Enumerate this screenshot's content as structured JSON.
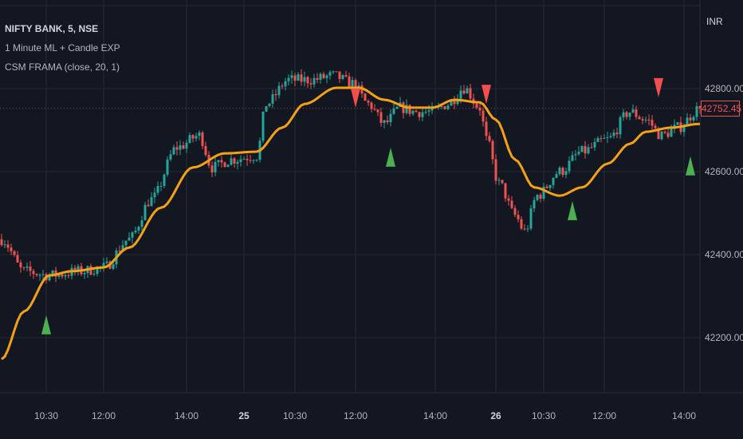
{
  "legend": {
    "symbol": "NIFTY BANK, 5, NSE",
    "indicator1": "1 Minute ML + Candle EXP",
    "indicator2": "CSM FRAMA (close, 20, 1)"
  },
  "currency": "INR",
  "last_price": "42752.45",
  "colors": {
    "background": "#131722",
    "grid": "#242833",
    "up": "#26a69a",
    "down": "#ef5350",
    "frama": "#f5a116",
    "buy": "#4caf50",
    "sell": "#f44f4f"
  },
  "chart_data": {
    "type": "candlestick",
    "title": "NIFTY BANK, 5, NSE",
    "ylim": [
      42080,
      42980
    ],
    "y_ticks": [
      "42800.00",
      "42600.00",
      "42400.00",
      "42200.00"
    ],
    "y_tick_values": [
      42800,
      42600,
      42400,
      42200
    ],
    "bar_count": 220,
    "x_ticks": [
      {
        "label": "10:30",
        "bar": 14,
        "day": false
      },
      {
        "label": "12:00",
        "bar": 32,
        "day": false
      },
      {
        "label": "14:00",
        "bar": 58,
        "day": false
      },
      {
        "label": "25",
        "bar": 76,
        "day": true
      },
      {
        "label": "10:30",
        "bar": 92,
        "day": false
      },
      {
        "label": "12:00",
        "bar": 111,
        "day": false
      },
      {
        "label": "14:00",
        "bar": 136,
        "day": false
      },
      {
        "label": "26",
        "bar": 155,
        "day": true
      },
      {
        "label": "10:30",
        "bar": 170,
        "day": false
      },
      {
        "label": "12:00",
        "bar": 189,
        "day": false
      },
      {
        "label": "14:00",
        "bar": 214,
        "day": false
      }
    ],
    "price_path": [
      [
        0,
        42437
      ],
      [
        7,
        42360
      ],
      [
        15,
        42350
      ],
      [
        25,
        42360
      ],
      [
        32,
        42369
      ],
      [
        40,
        42437
      ],
      [
        47,
        42533
      ],
      [
        55,
        42658
      ],
      [
        62,
        42687
      ],
      [
        66,
        42610
      ],
      [
        72,
        42629
      ],
      [
        80,
        42638
      ],
      [
        83,
        42763
      ],
      [
        90,
        42821
      ],
      [
        97,
        42821
      ],
      [
        104,
        42831
      ],
      [
        110,
        42812
      ],
      [
        115,
        42763
      ],
      [
        120,
        42715
      ],
      [
        125,
        42754
      ],
      [
        130,
        42744
      ],
      [
        135,
        42744
      ],
      [
        140,
        42763
      ],
      [
        145,
        42802
      ],
      [
        150,
        42754
      ],
      [
        152,
        42677
      ],
      [
        156,
        42571
      ],
      [
        161,
        42494
      ],
      [
        164,
        42456
      ],
      [
        168,
        42542
      ],
      [
        175,
        42600
      ],
      [
        182,
        42648
      ],
      [
        190,
        42677
      ],
      [
        197,
        42744
      ],
      [
        202,
        42725
      ],
      [
        207,
        42687
      ],
      [
        212,
        42706
      ],
      [
        219,
        42752.45
      ]
    ],
    "frama_path": [
      [
        0,
        42148
      ],
      [
        7,
        42263
      ],
      [
        15,
        42350
      ],
      [
        22,
        42360
      ],
      [
        32,
        42369
      ],
      [
        40,
        42417
      ],
      [
        50,
        42513
      ],
      [
        60,
        42610
      ],
      [
        70,
        42644
      ],
      [
        80,
        42648
      ],
      [
        88,
        42706
      ],
      [
        95,
        42763
      ],
      [
        105,
        42802
      ],
      [
        112,
        42802
      ],
      [
        120,
        42773
      ],
      [
        128,
        42754
      ],
      [
        135,
        42754
      ],
      [
        142,
        42773
      ],
      [
        150,
        42767
      ],
      [
        155,
        42725
      ],
      [
        161,
        42629
      ],
      [
        167,
        42562
      ],
      [
        175,
        42542
      ],
      [
        182,
        42562
      ],
      [
        190,
        42619
      ],
      [
        197,
        42667
      ],
      [
        202,
        42696
      ],
      [
        210,
        42706
      ],
      [
        219,
        42715
      ]
    ],
    "signals": [
      {
        "type": "sell",
        "bar": 111,
        "price": 42754
      },
      {
        "type": "sell",
        "bar": 152,
        "price": 42763
      },
      {
        "type": "sell",
        "bar": 206,
        "price": 42779
      },
      {
        "type": "buy",
        "bar": 14,
        "price": 42254
      },
      {
        "type": "buy",
        "bar": 122,
        "price": 42658
      },
      {
        "type": "buy",
        "bar": 179,
        "price": 42529
      },
      {
        "type": "buy",
        "bar": 216,
        "price": 42637
      }
    ]
  }
}
